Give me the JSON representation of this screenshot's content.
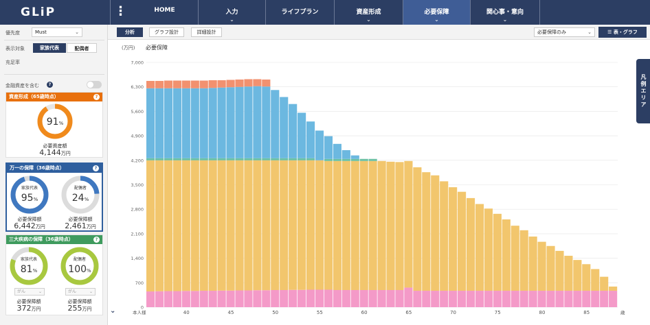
{
  "app": {
    "logo": "GLiP",
    "menu_icon": "kebab-icon"
  },
  "nav": [
    {
      "label": "HOME",
      "chevron": false
    },
    {
      "label": "入力",
      "chevron": true
    },
    {
      "label": "ライフプラン",
      "chevron": false
    },
    {
      "label": "資産形成",
      "chevron": true
    },
    {
      "label": "必要保障",
      "chevron": true,
      "active": true
    },
    {
      "label": "関心事・意向",
      "chevron": true
    }
  ],
  "left": {
    "priority_label": "優先度",
    "priority_value": "Must",
    "display_label": "表示対象",
    "seg_family": "家族代表",
    "seg_spouse": "配偶者",
    "fill_rate_label": "充足率",
    "financial_assets_label": "金融資産を含む",
    "asset_card": {
      "header": "資産形成（65歳時点）",
      "color": "#e8700d",
      "ring_color": "#f08a1c",
      "percent_num": "91",
      "percent_unit": "%",
      "amount_label": "必要資産額",
      "amount_value": "4,144",
      "amount_unit": "万円",
      "ratio": 0.91
    },
    "death_card": {
      "header": "万一の保障（36歳時点）",
      "color": "#2f5f9e",
      "ring_color": "#3f78c0",
      "family": {
        "sub": "家族代表",
        "percent_num": "95",
        "percent_unit": "%",
        "amount_label": "必要保障額",
        "amount_value": "6,442",
        "amount_unit": "万円",
        "ratio": 0.95
      },
      "spouse": {
        "sub": "配偶者",
        "percent_num": "24",
        "percent_unit": "%",
        "amount_label": "必要保障額",
        "amount_value": "2,461",
        "amount_unit": "万円",
        "ratio": 0.24
      }
    },
    "illness_card": {
      "header": "三大疾病の保障（36歳時点）",
      "color": "#3f9b5e",
      "ring_color": "#a8c83f",
      "family": {
        "sub": "家族代表",
        "percent_num": "81",
        "percent_unit": "%",
        "select": "がん",
        "amount_label": "必要保障額",
        "amount_value": "372",
        "amount_unit": "万円",
        "ratio": 0.81
      },
      "spouse": {
        "sub": "配偶者",
        "percent_num": "100",
        "percent_unit": "%",
        "select": "がん",
        "amount_label": "必要保障額",
        "amount_value": "255",
        "amount_unit": "万円",
        "ratio": 1.0
      }
    }
  },
  "toolbar": {
    "analysis": "分析",
    "graph_design": "グラフ設計",
    "detail_design": "詳細設計",
    "view_select": "必要保障のみ",
    "table_graph": "表・グラフ",
    "filter_icon": "filter-icon"
  },
  "legend_tab": "凡例エリア",
  "chart_data": {
    "type": "stacked-bar",
    "title": "必要保障",
    "unit_label": "(万円)",
    "ylim": [
      0,
      7000
    ],
    "y_ticks": [
      0,
      700,
      1400,
      2100,
      2800,
      3500,
      4200,
      4900,
      5600,
      6300,
      7000
    ],
    "y_tick_labels": [
      "0",
      "700",
      "1,400",
      "2,100",
      "2,800",
      "3,500",
      "4,200",
      "4,900",
      "5,600",
      "6,300",
      "7,000"
    ],
    "x_start_label": "本人様",
    "x_end_label": "歳",
    "x_ticks": [
      40,
      45,
      50,
      55,
      60,
      65,
      70,
      75,
      80,
      85
    ],
    "ages": [
      36,
      37,
      38,
      39,
      40,
      41,
      42,
      43,
      44,
      45,
      46,
      47,
      48,
      49,
      50,
      51,
      52,
      53,
      54,
      55,
      56,
      57,
      58,
      59,
      60,
      61,
      62,
      63,
      64,
      65,
      66,
      67,
      68,
      69,
      70,
      71,
      72,
      73,
      74,
      75,
      76,
      77,
      78,
      79,
      80,
      81,
      82,
      83,
      84,
      85,
      86,
      87,
      88
    ],
    "series": [
      {
        "name": "pink",
        "color": "#f49ac8",
        "values": [
          450,
          455,
          460,
          460,
          465,
          465,
          470,
          470,
          475,
          475,
          480,
          480,
          485,
          485,
          490,
          490,
          495,
          495,
          500,
          500,
          500,
          490,
          490,
          490,
          490,
          490,
          490,
          490,
          490,
          560,
          470,
          470,
          470,
          470,
          470,
          470,
          470,
          470,
          470,
          470,
          470,
          470,
          470,
          470,
          470,
          470,
          470,
          470,
          470,
          470,
          470,
          470,
          470
        ]
      },
      {
        "name": "yellow",
        "color": "#f2c66d",
        "values": [
          3750,
          3745,
          3740,
          3740,
          3735,
          3735,
          3730,
          3730,
          3725,
          3725,
          3720,
          3720,
          3715,
          3715,
          3710,
          3710,
          3705,
          3705,
          3700,
          3700,
          3680,
          3690,
          3690,
          3690,
          3690,
          3690,
          3690,
          3670,
          3660,
          3620,
          3530,
          3390,
          3300,
          3130,
          2960,
          2830,
          2650,
          2480,
          2350,
          2200,
          2040,
          1860,
          1730,
          1550,
          1400,
          1280,
          1140,
          1000,
          880,
          760,
          620,
          400,
          120
        ]
      },
      {
        "name": "green",
        "color": "#6cc1a4",
        "values": [
          60,
          60,
          60,
          60,
          60,
          60,
          60,
          60,
          60,
          60,
          60,
          60,
          60,
          60,
          60,
          60,
          60,
          60,
          60,
          0,
          60,
          60,
          60,
          60,
          60,
          60,
          0,
          0,
          0,
          0,
          0,
          0,
          0,
          0,
          0,
          0,
          0,
          0,
          0,
          0,
          0,
          0,
          0,
          0,
          0,
          0,
          0,
          0,
          0,
          0,
          0,
          0,
          0
        ]
      },
      {
        "name": "blue",
        "color": "#6cb8e0",
        "values": [
          2000,
          2000,
          2000,
          2000,
          2000,
          2000,
          2000,
          2010,
          2020,
          2030,
          2040,
          2050,
          2060,
          2050,
          1950,
          1750,
          1550,
          1300,
          1050,
          850,
          650,
          430,
          250,
          100,
          0,
          0,
          0,
          0,
          0,
          0,
          0,
          0,
          0,
          0,
          0,
          0,
          0,
          0,
          0,
          0,
          0,
          0,
          0,
          0,
          0,
          0,
          0,
          0,
          0,
          0,
          0,
          0,
          0
        ]
      },
      {
        "name": "orange",
        "color": "#f2916f",
        "values": [
          210,
          210,
          220,
          220,
          220,
          220,
          220,
          220,
          210,
          210,
          210,
          210,
          200,
          200,
          0,
          0,
          0,
          0,
          0,
          0,
          0,
          0,
          0,
          0,
          0,
          0,
          0,
          0,
          0,
          0,
          0,
          0,
          0,
          0,
          0,
          0,
          0,
          0,
          0,
          0,
          0,
          0,
          0,
          0,
          0,
          0,
          0,
          0,
          0,
          0,
          0,
          0,
          0
        ]
      }
    ]
  }
}
